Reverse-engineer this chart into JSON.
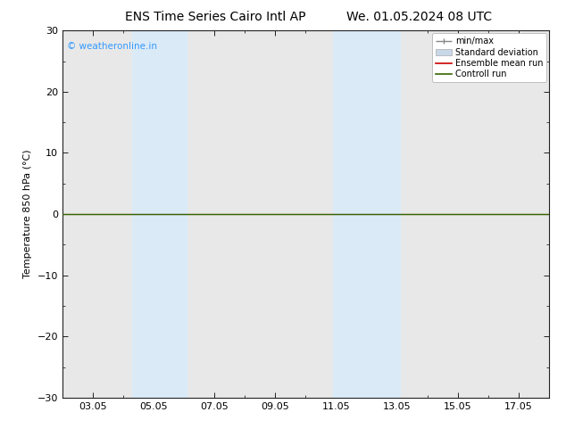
{
  "title_left": "ENS Time Series Cairo Intl AP",
  "title_right": "We. 01.05.2024 08 UTC",
  "ylabel": "Temperature 850 hPa (°C)",
  "ylim": [
    -30,
    30
  ],
  "yticks": [
    -30,
    -20,
    -10,
    0,
    10,
    20,
    30
  ],
  "xtick_labels": [
    "03.05",
    "05.05",
    "07.05",
    "09.05",
    "11.05",
    "13.05",
    "15.05",
    "17.05"
  ],
  "xtick_positions": [
    3,
    5,
    7,
    9,
    11,
    13,
    15,
    17
  ],
  "x_min": 2.0,
  "x_max": 18.0,
  "shaded_bands": [
    {
      "x_start": 4.3,
      "x_end": 6.1,
      "color": "#daeaf7"
    },
    {
      "x_start": 10.9,
      "x_end": 13.1,
      "color": "#daeaf7"
    }
  ],
  "control_run_y": 0.0,
  "control_run_color": "#336600",
  "ensemble_mean_color": "#cc0000",
  "minmax_color": "#888888",
  "std_dev_color": "#c8d8e8",
  "watermark_text": "© weatheronline.in",
  "watermark_color": "#3399ff",
  "background_color": "#ffffff",
  "plot_bg_color": "#e8e8e8",
  "legend_entries": [
    "min/max",
    "Standard deviation",
    "Ensemble mean run",
    "Controll run"
  ],
  "legend_colors": [
    "#888888",
    "#c8d8e8",
    "#cc0000",
    "#336600"
  ],
  "title_fontsize": 10,
  "axis_fontsize": 8,
  "tick_fontsize": 8,
  "legend_fontsize": 7
}
